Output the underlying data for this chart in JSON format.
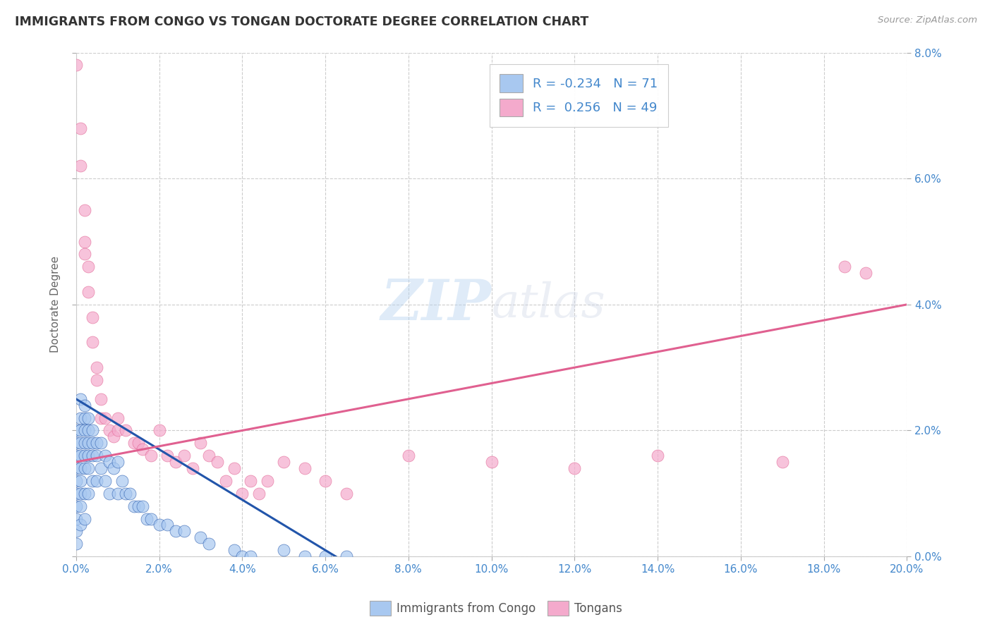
{
  "title": "IMMIGRANTS FROM CONGO VS TONGAN DOCTORATE DEGREE CORRELATION CHART",
  "source": "Source: ZipAtlas.com",
  "ylabel": "Doctorate Degree",
  "watermark": "ZIPatlas",
  "legend_blue_label": "Immigrants from Congo",
  "legend_pink_label": "Tongans",
  "r_blue": -0.234,
  "n_blue": 71,
  "r_pink": 0.256,
  "n_pink": 49,
  "xlim": [
    0.0,
    0.2
  ],
  "ylim": [
    0.0,
    0.08
  ],
  "xticks": [
    0.0,
    0.02,
    0.04,
    0.06,
    0.08,
    0.1,
    0.12,
    0.14,
    0.16,
    0.18,
    0.2
  ],
  "yticks": [
    0.0,
    0.02,
    0.04,
    0.06,
    0.08
  ],
  "blue_color": "#A8C8F0",
  "pink_color": "#F4AACC",
  "blue_line_color": "#2255AA",
  "pink_line_color": "#E06090",
  "background_color": "#FFFFFF",
  "grid_color": "#CCCCCC",
  "title_color": "#333333",
  "tick_color": "#4488CC",
  "blue_scatter_x": [
    0.0,
    0.0,
    0.0,
    0.0,
    0.0,
    0.0,
    0.0,
    0.0,
    0.0,
    0.0,
    0.001,
    0.001,
    0.001,
    0.001,
    0.001,
    0.001,
    0.001,
    0.001,
    0.001,
    0.001,
    0.002,
    0.002,
    0.002,
    0.002,
    0.002,
    0.002,
    0.002,
    0.002,
    0.003,
    0.003,
    0.003,
    0.003,
    0.003,
    0.003,
    0.004,
    0.004,
    0.004,
    0.004,
    0.005,
    0.005,
    0.005,
    0.006,
    0.006,
    0.007,
    0.007,
    0.008,
    0.008,
    0.009,
    0.01,
    0.01,
    0.011,
    0.012,
    0.013,
    0.014,
    0.015,
    0.016,
    0.017,
    0.018,
    0.02,
    0.022,
    0.024,
    0.026,
    0.03,
    0.032,
    0.038,
    0.04,
    0.042,
    0.05,
    0.055,
    0.06,
    0.065
  ],
  "blue_scatter_y": [
    0.02,
    0.018,
    0.016,
    0.014,
    0.012,
    0.01,
    0.008,
    0.006,
    0.004,
    0.002,
    0.025,
    0.022,
    0.02,
    0.018,
    0.016,
    0.014,
    0.012,
    0.01,
    0.008,
    0.005,
    0.024,
    0.022,
    0.02,
    0.018,
    0.016,
    0.014,
    0.01,
    0.006,
    0.022,
    0.02,
    0.018,
    0.016,
    0.014,
    0.01,
    0.02,
    0.018,
    0.016,
    0.012,
    0.018,
    0.016,
    0.012,
    0.018,
    0.014,
    0.016,
    0.012,
    0.015,
    0.01,
    0.014,
    0.015,
    0.01,
    0.012,
    0.01,
    0.01,
    0.008,
    0.008,
    0.008,
    0.006,
    0.006,
    0.005,
    0.005,
    0.004,
    0.004,
    0.003,
    0.002,
    0.001,
    0.0,
    0.0,
    0.001,
    0.0,
    0.0,
    0.0
  ],
  "pink_scatter_x": [
    0.0,
    0.001,
    0.001,
    0.002,
    0.002,
    0.002,
    0.003,
    0.003,
    0.004,
    0.004,
    0.005,
    0.005,
    0.006,
    0.006,
    0.007,
    0.008,
    0.009,
    0.01,
    0.01,
    0.012,
    0.014,
    0.015,
    0.016,
    0.018,
    0.02,
    0.022,
    0.024,
    0.026,
    0.028,
    0.03,
    0.032,
    0.034,
    0.036,
    0.038,
    0.04,
    0.042,
    0.044,
    0.046,
    0.05,
    0.055,
    0.06,
    0.065,
    0.08,
    0.1,
    0.12,
    0.14,
    0.17,
    0.185,
    0.19
  ],
  "pink_scatter_y": [
    0.078,
    0.068,
    0.062,
    0.055,
    0.05,
    0.048,
    0.046,
    0.042,
    0.038,
    0.034,
    0.03,
    0.028,
    0.025,
    0.022,
    0.022,
    0.02,
    0.019,
    0.022,
    0.02,
    0.02,
    0.018,
    0.018,
    0.017,
    0.016,
    0.02,
    0.016,
    0.015,
    0.016,
    0.014,
    0.018,
    0.016,
    0.015,
    0.012,
    0.014,
    0.01,
    0.012,
    0.01,
    0.012,
    0.015,
    0.014,
    0.012,
    0.01,
    0.016,
    0.015,
    0.014,
    0.016,
    0.015,
    0.046,
    0.045
  ],
  "blue_line_x": [
    0.0,
    0.065
  ],
  "blue_line_y": [
    0.025,
    -0.001
  ],
  "pink_line_x": [
    0.0,
    0.2
  ],
  "pink_line_y": [
    0.015,
    0.04
  ]
}
